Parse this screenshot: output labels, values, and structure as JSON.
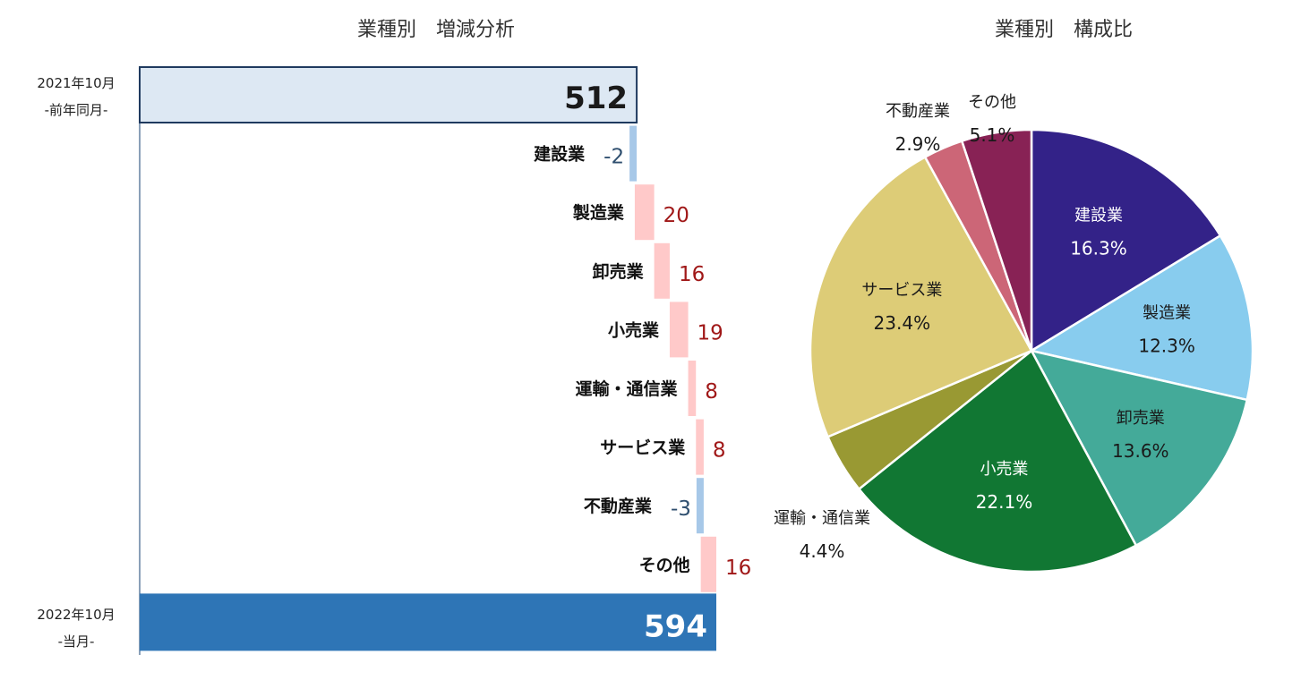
{
  "colors": {
    "start_fill": "#dde8f3",
    "start_stroke": "#1f3a5f",
    "end_fill": "#2e75b6",
    "increase": "#ffc9c9",
    "decrease": "#a7c8e8",
    "increase_text": "#a01818",
    "decrease_text": "#2f4f6f",
    "axis": "#8aa0b8"
  },
  "chart_data": [
    {
      "type": "bar",
      "subtype": "waterfall",
      "title": "業種別　増減分析",
      "start": {
        "label_line1": "2021年10月",
        "label_line2": "-前年同月-",
        "value": 512
      },
      "end": {
        "label_line1": "2022年10月",
        "label_line2": "-当月-",
        "value": 594
      },
      "categories": [
        "建設業",
        "製造業",
        "卸売業",
        "小売業",
        "運輸・通信業",
        "サービス業",
        "不動産業",
        "その他"
      ],
      "values": [
        -2,
        20,
        16,
        19,
        8,
        8,
        -3,
        16
      ],
      "value_labels": [
        "-2",
        "20",
        "16",
        "19",
        "8",
        "8",
        "-3",
        "16"
      ],
      "xlim": [
        380,
        600
      ]
    },
    {
      "type": "pie",
      "title": "業種別　構成比",
      "slices": [
        {
          "label": "建設業",
          "value_text": "16.3%",
          "value": 16.3,
          "color": "#332288",
          "text_color": "#ffffff"
        },
        {
          "label": "製造業",
          "value_text": "12.3%",
          "value": 12.3,
          "color": "#88ccee",
          "text_color": "#1a1a1a"
        },
        {
          "label": "卸売業",
          "value_text": "13.6%",
          "value": 13.6,
          "color": "#44aa99",
          "text_color": "#1a1a1a"
        },
        {
          "label": "小売業",
          "value_text": "22.1%",
          "value": 22.1,
          "color": "#117733",
          "text_color": "#ffffff"
        },
        {
          "label": "運輸・通信業",
          "value_text": "4.4%",
          "value": 4.4,
          "color": "#999933",
          "text_color": "#1a1a1a"
        },
        {
          "label": "サービス業",
          "value_text": "23.4%",
          "value": 23.4,
          "color": "#ddcc77",
          "text_color": "#1a1a1a"
        },
        {
          "label": "不動産業",
          "value_text": "2.9%",
          "value": 2.9,
          "color": "#cc6677",
          "text_color": "#1a1a1a"
        },
        {
          "label": "その他",
          "value_text": "5.1%",
          "value": 5.1,
          "color": "#882255",
          "text_color": "#1a1a1a"
        }
      ]
    }
  ]
}
